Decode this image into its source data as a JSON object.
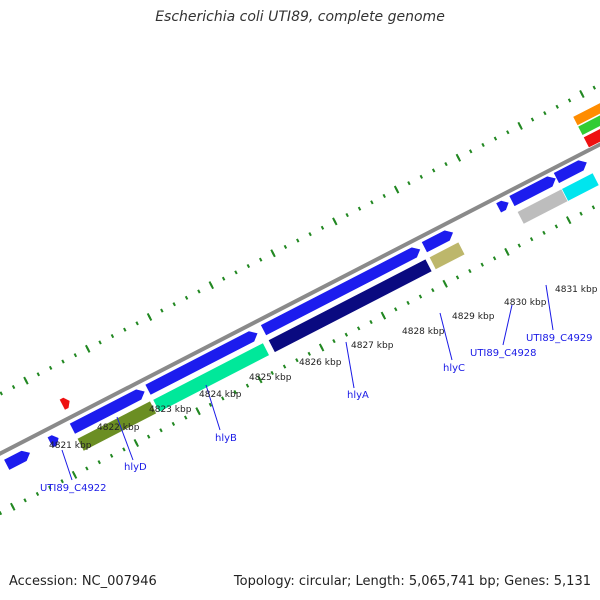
{
  "title": "Escherichia coli UTI89, complete genome",
  "footer": {
    "accession": "Accession: NC_007946",
    "summary": "Topology: circular; Length: 5,065,741 bp; Genes: 5,131"
  },
  "colors": {
    "cds": "#1c1cee",
    "red": "#ee1111",
    "backbone": "#8a8a8a",
    "tick": "#228822",
    "label_gene": "#1a1ae6",
    "track_olive": "#6b8e23",
    "track_aqua": "#00e89a",
    "track_navy": "#0a0a80",
    "track_khaki": "#bdb76b",
    "track_gray": "#bdbdbd",
    "track_cyan": "#00e5ee",
    "track_orange": "#ff8c00",
    "track_green": "#33cc33"
  },
  "kbp_labels": [
    "4821 kbp",
    "4822 kbp",
    "4823 kbp",
    "4824 kbp",
    "4825 kbp",
    "4826 kbp",
    "4827 kbp",
    "4828 kbp",
    "4829 kbp",
    "4830 kbp",
    "4831 kbp"
  ],
  "genes": [
    "UTI89_C4922",
    "hlyD",
    "hlyB",
    "hlyA",
    "hlyC",
    "UTI89_C4928",
    "UTI89_C4929"
  ]
}
